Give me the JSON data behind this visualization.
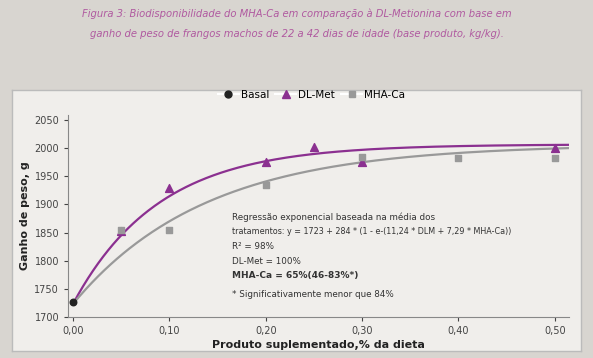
{
  "title_line1": "Figura 3: Biodisponibilidade do MHA-Ca em comparação à DL-Metionina com base em",
  "title_line2": "ganho de peso de frangos machos de 22 a 42 dias de idade (base produto, kg/kg).",
  "title_color": "#b05aa0",
  "xlabel": "Produto suplementado,% da dieta",
  "ylabel": "Ganho de peso, g",
  "ylim": [
    1700,
    2060
  ],
  "xlim": [
    -0.005,
    0.515
  ],
  "yticks": [
    1700,
    1750,
    1800,
    1850,
    1900,
    1950,
    2000,
    2050
  ],
  "xticks": [
    0.0,
    0.1,
    0.2,
    0.3,
    0.4,
    0.5
  ],
  "xtick_labels": [
    "0,00",
    "0,10",
    "0,20",
    "0,30",
    "0,40",
    "0,50"
  ],
  "basal_x": [
    0.0
  ],
  "basal_y": [
    1727
  ],
  "dlm_x": [
    0.05,
    0.1,
    0.2,
    0.25,
    0.3,
    0.5
  ],
  "dlm_y": [
    1853,
    1930,
    1975,
    2003,
    1975,
    2000
  ],
  "mhaca_x": [
    0.05,
    0.1,
    0.2,
    0.3,
    0.4,
    0.5
  ],
  "mhaca_y": [
    1855,
    1855,
    1935,
    1985,
    1982,
    1983
  ],
  "dlm_curve_color": "#8b3090",
  "mhaca_curve_color": "#999999",
  "basal_marker_color": "#222222",
  "dlm_marker_color": "#8b3090",
  "mhaca_marker_color": "#999999",
  "ann1": "Regressão exponencial baseada na média dos",
  "ann2": "tratamentos: y = 1723 + 284 * (1 - e-(11,24 * DLM + 7,29 * MHA-Ca))",
  "ann3": "R² = 98%",
  "ann4": "DL-Met = 100%",
  "ann5": "MHA-Ca = 65%(46-83%*)",
  "ann6": "* Significativamente menor que 84%",
  "outer_bg": "#d8d5d0",
  "inner_bg": "#f0eeeb",
  "border_color": "#bbbbbb"
}
